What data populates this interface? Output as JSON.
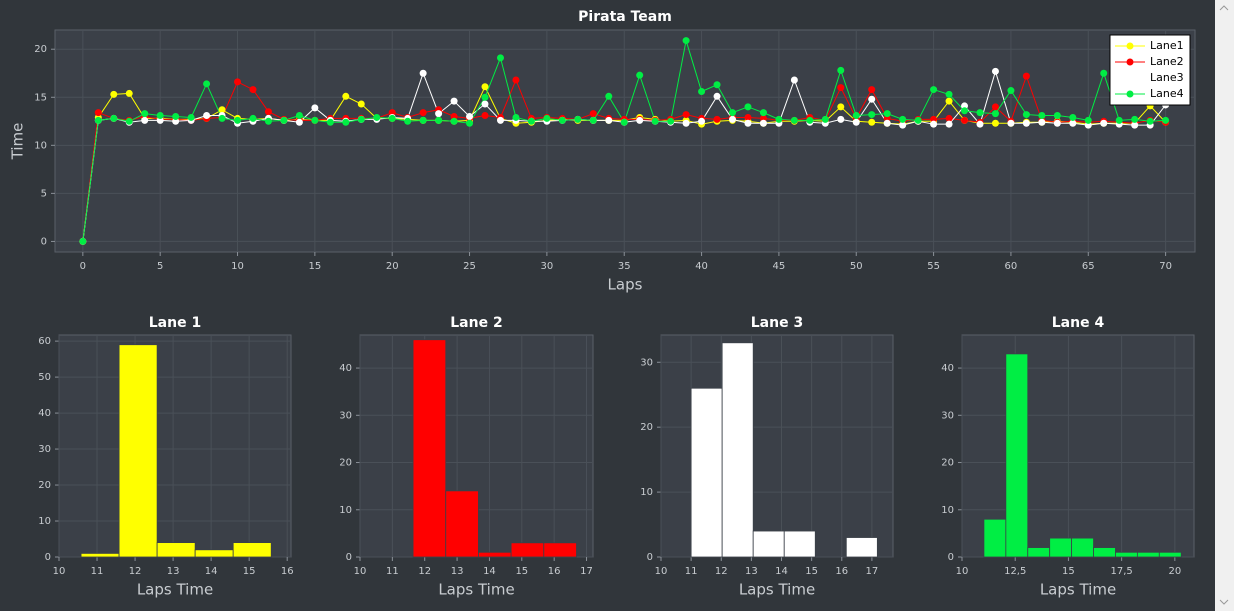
{
  "chart_data": [
    {
      "type": "line",
      "title": "Pirata Team",
      "x_label": "Laps",
      "y_label": "Time",
      "x": [
        0,
        1,
        2,
        3,
        4,
        5,
        6,
        7,
        8,
        9,
        10,
        11,
        12,
        13,
        14,
        15,
        16,
        17,
        18,
        19,
        20,
        21,
        22,
        23,
        24,
        25,
        26,
        27,
        28,
        29,
        30,
        31,
        32,
        33,
        34,
        35,
        36,
        37,
        38,
        39,
        40,
        41,
        42,
        43,
        44,
        45,
        46,
        47,
        48,
        49,
        50,
        51,
        52,
        53,
        54,
        55,
        56,
        57,
        58,
        59,
        60,
        61,
        62,
        63,
        64,
        65,
        66,
        67,
        68,
        69,
        70
      ],
      "xlim": [
        -1.8,
        71.9
      ],
      "ylim": [
        -1.1,
        22
      ],
      "xticks": [
        0,
        5,
        10,
        15,
        20,
        25,
        30,
        35,
        40,
        45,
        50,
        55,
        60,
        65,
        70
      ],
      "yticks": [
        0,
        5,
        10,
        15,
        20
      ],
      "grid": true,
      "legend": "upper right",
      "series": [
        {
          "name": "Lane1",
          "color": "#ffff00",
          "values": [
            0,
            12.9,
            15.3,
            15.4,
            12.8,
            12.8,
            12.7,
            12.7,
            12.8,
            13.7,
            12.8,
            12.7,
            12.8,
            12.6,
            12.7,
            12.6,
            12.6,
            15.1,
            14.3,
            12.8,
            12.8,
            12.7,
            12.6,
            12.6,
            12.5,
            12.6,
            16.1,
            12.8,
            12.3,
            12.4,
            12.6,
            12.7,
            12.6,
            12.6,
            12.6,
            12.6,
            12.9,
            12.7,
            12.5,
            12.6,
            12.2,
            12.5,
            12.6,
            12.5,
            12.3,
            12.5,
            12.5,
            12.6,
            12.5,
            14.0,
            12.5,
            12.4,
            12.3,
            12.2,
            12.5,
            12.5,
            14.6,
            12.6,
            12.3,
            12.3,
            12.3,
            12.4,
            12.4,
            12.5,
            12.4,
            12.2,
            12.3,
            12.3,
            12.3,
            14.1,
            12.4
          ]
        },
        {
          "name": "Lane2",
          "color": "#ff0000",
          "values": [
            0,
            13.4,
            12.8,
            12.6,
            13.0,
            12.7,
            12.7,
            12.6,
            12.8,
            12.9,
            16.6,
            15.8,
            13.5,
            12.7,
            12.6,
            12.6,
            12.8,
            12.8,
            12.8,
            12.8,
            13.4,
            12.9,
            13.4,
            13.7,
            13.0,
            12.8,
            13.1,
            12.9,
            16.8,
            12.8,
            12.9,
            12.8,
            12.7,
            13.3,
            12.8,
            12.7,
            12.7,
            12.6,
            12.7,
            13.2,
            12.8,
            12.7,
            12.9,
            12.9,
            12.8,
            12.6,
            12.6,
            12.9,
            12.6,
            16.0,
            12.8,
            15.8,
            12.8,
            12.5,
            12.7,
            12.7,
            12.8,
            12.6,
            12.4,
            14.0,
            12.5,
            17.2,
            12.6,
            12.4,
            12.5,
            12.4,
            12.5,
            12.4,
            12.3,
            12.6,
            12.4
          ]
        },
        {
          "name": "Lane3",
          "color": "#ffffff",
          "values": [
            0,
            12.6,
            12.8,
            12.4,
            12.6,
            12.6,
            12.5,
            12.6,
            13.1,
            13.1,
            12.3,
            12.5,
            12.8,
            12.6,
            12.4,
            13.9,
            12.6,
            12.5,
            12.7,
            12.7,
            12.9,
            12.8,
            17.5,
            13.3,
            14.6,
            13.0,
            14.3,
            12.6,
            12.6,
            12.5,
            12.5,
            12.6,
            12.7,
            12.6,
            12.6,
            12.4,
            12.6,
            12.5,
            12.4,
            12.3,
            12.5,
            15.1,
            12.7,
            12.3,
            12.3,
            12.3,
            16.8,
            12.4,
            12.3,
            12.7,
            12.4,
            14.8,
            12.3,
            12.1,
            12.5,
            12.2,
            12.2,
            14.1,
            12.2,
            17.7,
            12.3,
            12.3,
            12.4,
            12.3,
            12.3,
            12.1,
            12.3,
            12.2,
            12.1,
            12.1,
            14.2
          ]
        },
        {
          "name": "Lane4",
          "color": "#00ee44",
          "values": [
            0,
            12.6,
            12.8,
            12.5,
            13.3,
            13.1,
            13.0,
            12.9,
            16.4,
            12.8,
            12.6,
            12.8,
            12.5,
            12.6,
            13.1,
            12.6,
            12.4,
            12.4,
            12.7,
            12.9,
            12.8,
            12.5,
            12.6,
            12.6,
            12.5,
            12.3,
            15.0,
            19.1,
            12.9,
            12.5,
            12.8,
            12.6,
            12.7,
            12.6,
            15.1,
            12.4,
            17.3,
            12.5,
            12.5,
            20.9,
            15.6,
            16.3,
            13.4,
            14.0,
            13.4,
            12.7,
            12.6,
            12.6,
            12.7,
            17.8,
            13.1,
            13.2,
            13.3,
            12.7,
            12.6,
            15.8,
            15.3,
            13.6,
            13.4,
            13.3,
            15.7,
            13.2,
            13.1,
            13.1,
            12.9,
            12.6,
            17.5,
            12.6,
            12.7,
            12.5,
            12.6
          ]
        }
      ]
    },
    {
      "type": "histogram",
      "title": "Lane 1",
      "x_label": "Laps Time",
      "color": "#ffff00",
      "bins": [
        10.58,
        11.58,
        12.58,
        13.58,
        14.58,
        15.58
      ],
      "counts": [
        1,
        59,
        4,
        2,
        4
      ],
      "xlim": [
        10,
        16.1
      ],
      "ylim": [
        0,
        61.7
      ],
      "xticks": [
        10,
        11,
        12,
        13,
        14,
        15,
        16
      ],
      "yticks": [
        0,
        10,
        20,
        30,
        40,
        50,
        60
      ],
      "grid": true
    },
    {
      "type": "histogram",
      "title": "Lane 2",
      "x_label": "Laps Time",
      "color": "#ff0000",
      "bins": [
        11.64,
        12.65,
        13.66,
        14.67,
        15.68,
        16.69
      ],
      "counts": [
        46,
        14,
        1,
        3,
        3
      ],
      "xlim": [
        10,
        17.2
      ],
      "ylim": [
        0,
        47
      ],
      "xticks": [
        10,
        11,
        12,
        13,
        14,
        15,
        16,
        17
      ],
      "yticks": [
        0,
        10,
        20,
        30,
        40
      ],
      "grid": true
    },
    {
      "type": "histogram",
      "title": "Lane 3",
      "x_label": "Laps Time",
      "color": "#ffffff",
      "bins": [
        11.0,
        12.03,
        13.06,
        14.09,
        15.12,
        16.15,
        17.18
      ],
      "counts": [
        26,
        33,
        4,
        4,
        0,
        3
      ],
      "xlim": [
        10,
        17.7
      ],
      "ylim": [
        0,
        34.2
      ],
      "xticks": [
        10,
        11,
        12,
        13,
        14,
        15,
        16,
        17
      ],
      "yticks": [
        0,
        10,
        20,
        30
      ],
      "grid": true
    },
    {
      "type": "histogram",
      "title": "Lane 4",
      "x_label": "Laps Time",
      "color": "#00ee44",
      "bins": [
        11.03,
        12.06,
        13.09,
        14.12,
        15.15,
        16.18,
        17.21,
        18.24,
        19.27,
        20.3
      ],
      "counts": [
        8,
        43,
        2,
        4,
        4,
        2,
        1,
        1,
        1
      ],
      "xlim": [
        10,
        20.9
      ],
      "ylim": [
        0,
        47
      ],
      "xticks": [
        10,
        {
          "value": 12.5,
          "label": "12,5"
        },
        15,
        {
          "value": 17.5,
          "label": "17,5"
        },
        20
      ],
      "yticks": [
        0,
        10,
        20,
        30,
        40
      ],
      "grid": true
    }
  ]
}
